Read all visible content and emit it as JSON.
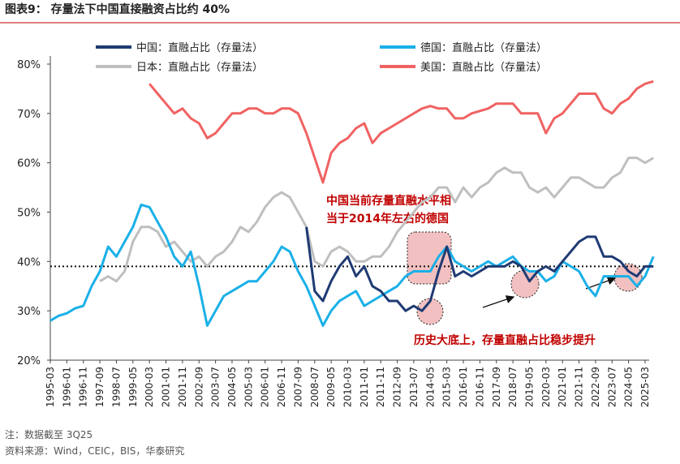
{
  "chart_data": {
    "type": "line",
    "title": "图表9：  存量法下中国直接融资占比约 40%",
    "annotations": [
      "中国当前存量直融水平相",
      "当于2014年左右的德国",
      "历史大底上，存量直融占比稳步提升"
    ],
    "notes": [
      "注：数据截至 3Q25",
      "资料来源：Wind，CEIC，BIS，华泰研究"
    ],
    "categories": [
      "1995-03",
      null,
      "1996-01",
      null,
      "1996-11",
      null,
      "1997-09",
      null,
      "1998-07",
      null,
      "1999-05",
      null,
      "2000-03",
      null,
      "2001-01",
      null,
      "2001-11",
      null,
      "2002-09",
      null,
      "2003-07",
      null,
      "2004-05",
      null,
      "2005-03",
      null,
      "2006-01",
      null,
      "2006-11",
      null,
      "2007-09",
      null,
      "2008-07",
      null,
      "2009-05",
      null,
      "2010-03",
      null,
      "2011-01",
      null,
      "2011-11",
      null,
      "2012-09",
      null,
      "2013-07",
      null,
      "2014-05",
      null,
      "2015-03",
      null,
      "2016-01",
      null,
      "2016-11",
      null,
      "2017-09",
      null,
      "2018-07",
      null,
      "2019-05",
      null,
      "2020-03",
      null,
      "2021-01",
      null,
      "2021-11",
      null,
      "2022-09",
      null,
      "2023-07",
      null,
      "2024-05",
      null,
      "2025-03",
      null
    ],
    "series": [
      {
        "name": "中国：直融占比（存量法）",
        "color": "#1f3a73",
        "values": [
          null,
          null,
          null,
          null,
          null,
          null,
          null,
          null,
          null,
          null,
          null,
          null,
          null,
          null,
          null,
          null,
          null,
          null,
          null,
          null,
          null,
          null,
          null,
          null,
          null,
          null,
          null,
          null,
          null,
          null,
          null,
          47,
          34,
          32,
          36,
          39,
          41,
          37,
          39,
          35,
          34,
          32,
          32,
          30,
          31,
          30,
          32,
          38,
          43,
          37,
          38,
          37,
          38,
          39,
          39,
          39,
          40,
          39,
          36,
          38,
          39,
          38,
          40,
          42,
          44,
          45,
          45,
          41,
          41,
          40,
          38,
          37,
          39,
          39
        ]
      },
      {
        "name": "德国：直融占比（存量法）",
        "color": "#1ab0e8",
        "values": [
          28,
          29,
          29.5,
          30.5,
          31,
          35,
          38,
          43,
          41,
          44,
          47,
          51.5,
          51,
          48,
          45,
          41,
          39,
          42,
          35,
          27,
          30,
          33,
          34,
          35,
          36,
          36,
          38,
          40,
          43,
          42,
          38,
          35,
          31,
          27,
          30,
          32,
          33,
          34,
          31,
          32,
          33,
          34,
          35,
          37,
          38,
          38,
          38,
          41,
          43,
          40,
          39,
          38,
          39,
          40,
          39,
          40,
          41,
          39,
          38,
          38,
          36,
          37,
          40,
          39,
          38,
          35,
          33,
          37,
          37,
          37,
          37,
          35,
          37,
          41
        ]
      },
      {
        "name": "日本：直融占比（存量法）",
        "color": "#bfbfbf",
        "values": [
          null,
          null,
          null,
          null,
          null,
          null,
          36,
          37,
          36,
          38,
          44,
          47,
          47,
          46,
          43,
          44,
          42,
          40,
          41,
          39,
          41,
          42,
          44,
          47,
          46,
          48,
          51,
          53,
          54,
          53,
          50,
          47,
          40,
          39,
          42,
          43,
          42,
          40,
          40,
          41,
          41,
          43,
          46,
          48,
          50,
          52,
          53,
          55,
          55,
          52,
          55,
          53,
          55,
          56,
          58,
          59,
          58,
          58,
          55,
          54,
          55,
          53,
          55,
          57,
          57,
          56,
          55,
          55,
          57,
          58,
          61,
          61,
          60,
          61
        ]
      },
      {
        "name": "美国：直融占比（存量法）",
        "color": "#f06262",
        "values": [
          null,
          null,
          null,
          null,
          null,
          null,
          null,
          null,
          null,
          null,
          null,
          null,
          76,
          74,
          72,
          70,
          71,
          69,
          68,
          65,
          66,
          68,
          70,
          70,
          71,
          71,
          70,
          70,
          71,
          71,
          70,
          66,
          61,
          56,
          62,
          64,
          65,
          67,
          68,
          64,
          66,
          67,
          68,
          69,
          70,
          71,
          71.5,
          71,
          71,
          69,
          69,
          70,
          70.5,
          71,
          72,
          72,
          72,
          70,
          70,
          70,
          66,
          69,
          70,
          72,
          74,
          74,
          74,
          71,
          70,
          72,
          73,
          75,
          76,
          76.5
        ]
      }
    ],
    "reference_line": 39,
    "ylim": [
      20,
      80
    ],
    "yticks": [
      {
        "value": 20,
        "label": "20%"
      },
      {
        "value": 30,
        "label": "30%"
      },
      {
        "value": 40,
        "label": "40%"
      },
      {
        "value": 50,
        "label": "50%"
      },
      {
        "value": 60,
        "label": "60%"
      },
      {
        "value": 70,
        "label": "70%"
      },
      {
        "value": 80,
        "label": "80%"
      }
    ]
  }
}
